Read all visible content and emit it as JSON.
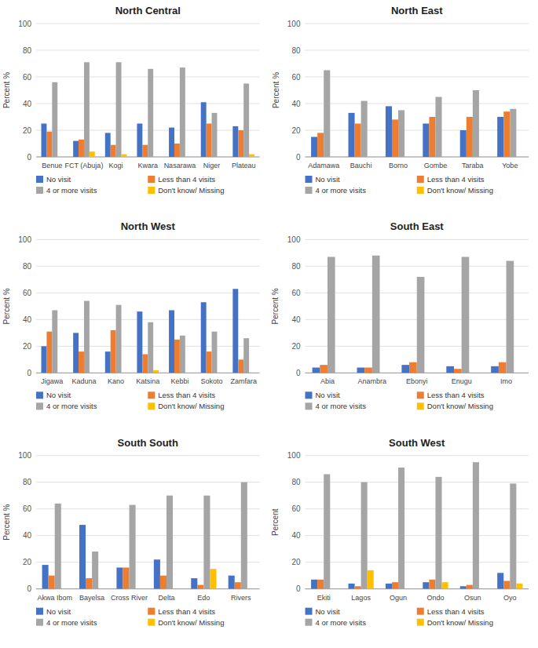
{
  "chart_data": [
    {
      "type": "bar",
      "title": "North Central",
      "ylabel": "Percent %",
      "categories": [
        "Benue",
        "FCT (Abuja)",
        "Kogi",
        "Kwara",
        "Nasarawa",
        "Niger",
        "Plateau"
      ],
      "series": [
        {
          "name": "No visit",
          "color": "#4472C4",
          "values": [
            25,
            12,
            18,
            25,
            22,
            41,
            23
          ]
        },
        {
          "name": "Less than 4 visits",
          "color": "#ED7D31",
          "values": [
            19,
            13,
            9,
            9,
            10,
            25,
            20
          ]
        },
        {
          "name": "4 or more visits",
          "color": "#A5A5A5",
          "values": [
            56,
            71,
            71,
            66,
            67,
            33,
            55
          ]
        },
        {
          "name": "Don't know/ Missing",
          "color": "#FFC000",
          "values": [
            0,
            4,
            2,
            0,
            0,
            0,
            2
          ]
        }
      ],
      "ylim": [
        0,
        100
      ],
      "yticks": [
        0,
        20,
        40,
        60,
        80,
        100
      ],
      "grid": true,
      "legend": "bottom"
    },
    {
      "type": "bar",
      "title": "North East",
      "ylabel": "Percent %",
      "categories": [
        "Adamawa",
        "Bauchi",
        "Borno",
        "Gombe",
        "Taraba",
        "Yobe"
      ],
      "series": [
        {
          "name": "No visit",
          "color": "#4472C4",
          "values": [
            15,
            33,
            38,
            25,
            20,
            30
          ]
        },
        {
          "name": "Less than 4 visits",
          "color": "#ED7D31",
          "values": [
            18,
            25,
            28,
            30,
            30,
            34
          ]
        },
        {
          "name": "4 or more visits",
          "color": "#A5A5A5",
          "values": [
            65,
            42,
            35,
            45,
            50,
            36
          ]
        },
        {
          "name": "Don't know/ Missing",
          "color": "#FFC000",
          "values": [
            0,
            0,
            0,
            0,
            0,
            0
          ]
        }
      ],
      "ylim": [
        0,
        100
      ],
      "yticks": [
        0,
        20,
        40,
        60,
        80,
        100
      ],
      "grid": true,
      "legend": "bottom"
    },
    {
      "type": "bar",
      "title": "North West",
      "ylabel": "Percent %",
      "categories": [
        "Jigawa",
        "Kaduna",
        "Kano",
        "Katsina",
        "Kebbi",
        "Sokoto",
        "Zamfara"
      ],
      "series": [
        {
          "name": "No visit",
          "color": "#4472C4",
          "values": [
            20,
            30,
            16,
            46,
            47,
            53,
            63
          ]
        },
        {
          "name": "Less than 4 visits",
          "color": "#ED7D31",
          "values": [
            31,
            16,
            32,
            14,
            25,
            16,
            10
          ]
        },
        {
          "name": "4 or more visits",
          "color": "#A5A5A5",
          "values": [
            47,
            54,
            51,
            38,
            28,
            31,
            26
          ]
        },
        {
          "name": "Don't know/ Missing",
          "color": "#FFC000",
          "values": [
            0,
            0,
            0,
            2,
            0,
            0,
            0
          ]
        }
      ],
      "ylim": [
        0,
        100
      ],
      "yticks": [
        0,
        20,
        40,
        60,
        80,
        100
      ],
      "grid": true,
      "legend": "bottom"
    },
    {
      "type": "bar",
      "title": "South East",
      "ylabel": "Percent %",
      "categories": [
        "Abia",
        "Anambra",
        "Ebonyi",
        "Enugu",
        "Imo"
      ],
      "series": [
        {
          "name": "No visit",
          "color": "#4472C4",
          "values": [
            4,
            4,
            6,
            5,
            5
          ]
        },
        {
          "name": "Less than 4 visits",
          "color": "#ED7D31",
          "values": [
            6,
            4,
            8,
            3,
            8
          ]
        },
        {
          "name": "4 or more visits",
          "color": "#A5A5A5",
          "values": [
            87,
            88,
            72,
            87,
            84
          ]
        },
        {
          "name": "Don't know/ Missing",
          "color": "#FFC000",
          "values": [
            0,
            0,
            0,
            0,
            0
          ]
        }
      ],
      "ylim": [
        0,
        100
      ],
      "yticks": [
        0,
        20,
        40,
        60,
        80,
        100
      ],
      "grid": true,
      "legend": "bottom"
    },
    {
      "type": "bar",
      "title": "South South",
      "ylabel": "Percent %",
      "categories": [
        "Akwa Ibom",
        "Bayelsa",
        "Cross River",
        "Delta",
        "Edo",
        "Rivers"
      ],
      "series": [
        {
          "name": "No visit",
          "color": "#4472C4",
          "values": [
            18,
            48,
            16,
            22,
            8,
            10
          ]
        },
        {
          "name": "Less than 4 visits",
          "color": "#ED7D31",
          "values": [
            10,
            8,
            16,
            10,
            3,
            5
          ]
        },
        {
          "name": "4 or more visits",
          "color": "#A5A5A5",
          "values": [
            64,
            28,
            63,
            70,
            70,
            80
          ]
        },
        {
          "name": "Don't know/ Missing",
          "color": "#FFC000",
          "values": [
            0,
            0,
            0,
            0,
            15,
            0
          ]
        }
      ],
      "ylim": [
        0,
        100
      ],
      "yticks": [
        0,
        20,
        40,
        60,
        80,
        100
      ],
      "grid": true,
      "legend": "bottom"
    },
    {
      "type": "bar",
      "title": "South West",
      "ylabel": "Percent",
      "categories": [
        "Ekiti",
        "Lagos",
        "Ogun",
        "Ondo",
        "Osun",
        "Oyo"
      ],
      "series": [
        {
          "name": "No visit",
          "color": "#4472C4",
          "values": [
            7,
            4,
            4,
            5,
            2,
            12
          ]
        },
        {
          "name": "Less than 4 visits",
          "color": "#ED7D31",
          "values": [
            7,
            2,
            5,
            7,
            3,
            6
          ]
        },
        {
          "name": "4 or more visits",
          "color": "#A5A5A5",
          "values": [
            86,
            80,
            91,
            84,
            95,
            79
          ]
        },
        {
          "name": "Don't know/ Missing",
          "color": "#FFC000",
          "values": [
            0,
            14,
            0,
            5,
            0,
            4
          ]
        }
      ],
      "ylim": [
        0,
        100
      ],
      "yticks": [
        0,
        20,
        40,
        60,
        80,
        100
      ],
      "grid": true,
      "legend": "bottom"
    }
  ]
}
